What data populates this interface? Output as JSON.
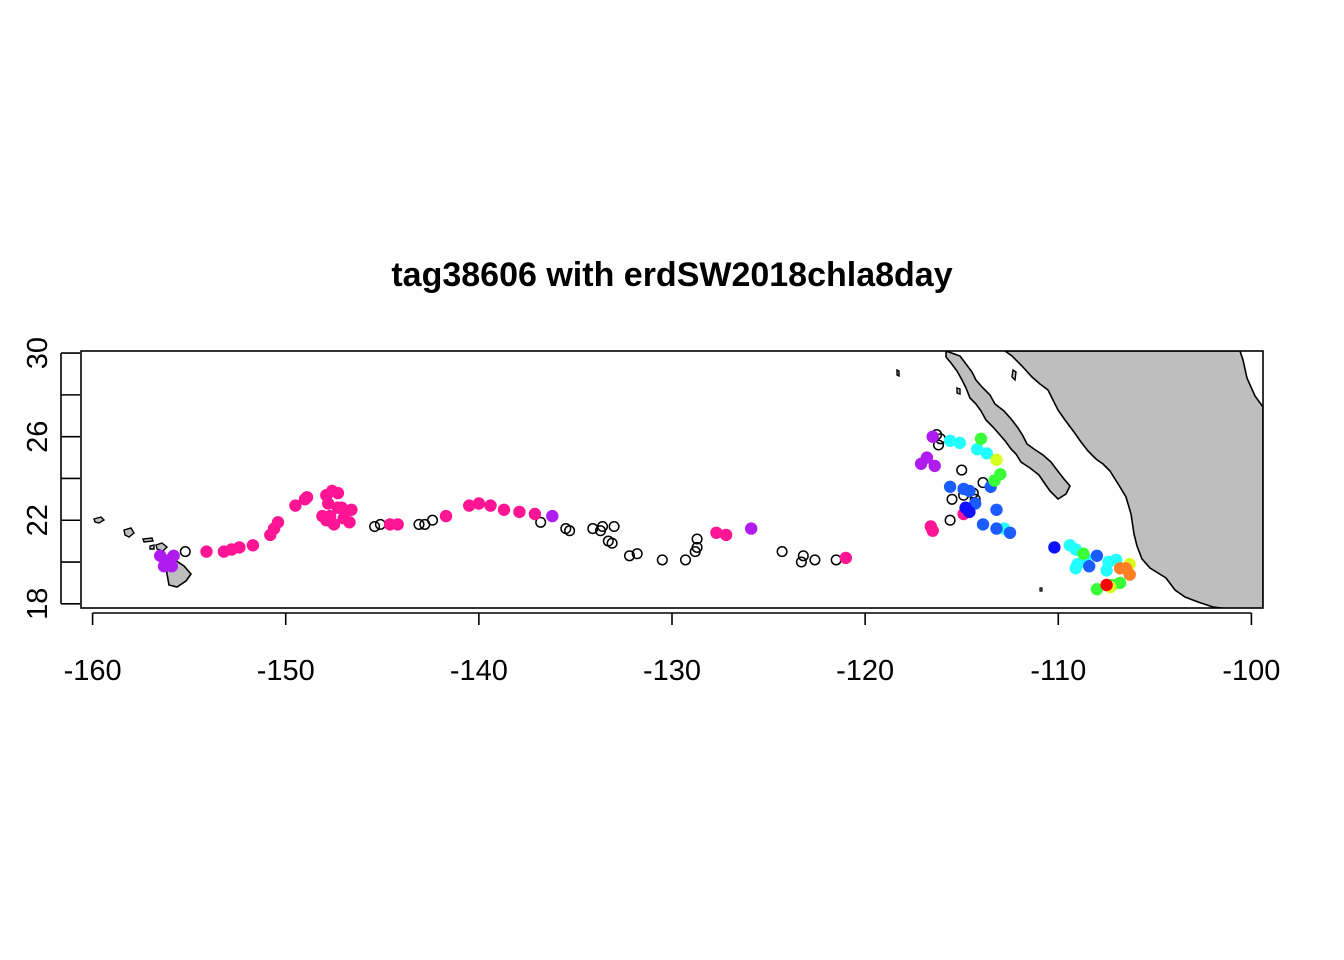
{
  "chart_data": {
    "type": "scatter",
    "title": "tag38606 with erdSW2018chla8day",
    "xlabel": "",
    "ylabel": "",
    "xlim": [
      -160.6,
      -99.4
    ],
    "ylim": [
      17.8,
      30.1
    ],
    "x_ticks": [
      -160,
      -150,
      -140,
      -130,
      -120,
      -110,
      -100
    ],
    "x_tick_labels": [
      "-160",
      "-150",
      "-140",
      "-130",
      "-120",
      "-110",
      "-100"
    ],
    "y_ticks": [
      18,
      20,
      22,
      24,
      26,
      28,
      30
    ],
    "y_labeled_ticks": [
      18,
      22,
      26,
      30
    ],
    "y_tick_labels": [
      "18",
      "22",
      "26",
      "30"
    ],
    "grid": false,
    "land_color": "#bebebe",
    "colors": {
      "magenta": "#ff1493",
      "purple": "#b01cf0",
      "cyan": "#22ffff",
      "blue": "#1a5cff",
      "darkblue": "#1010ff",
      "green": "#38ff38",
      "yellow": "#d8ff20",
      "orange": "#ff7f24",
      "red": "#ff0000"
    },
    "series": [
      {
        "marker": "open-circle",
        "points": [
          [
            -155.2,
            20.5
          ],
          [
            -145.4,
            21.7
          ],
          [
            -145.1,
            21.8
          ],
          [
            -143.1,
            21.8
          ],
          [
            -142.8,
            21.8
          ],
          [
            -142.4,
            22.0
          ],
          [
            -136.8,
            21.9
          ],
          [
            -135.5,
            21.6
          ],
          [
            -135.3,
            21.5
          ],
          [
            -134.1,
            21.6
          ],
          [
            -133.7,
            21.5
          ],
          [
            -133.6,
            21.7
          ],
          [
            -133.0,
            21.7
          ],
          [
            -133.3,
            21.0
          ],
          [
            -133.1,
            20.9
          ],
          [
            -132.2,
            20.3
          ],
          [
            -131.8,
            20.4
          ],
          [
            -130.5,
            20.1
          ],
          [
            -129.3,
            20.1
          ],
          [
            -128.7,
            21.1
          ],
          [
            -128.7,
            20.7
          ],
          [
            -128.8,
            20.5
          ],
          [
            -124.3,
            20.5
          ],
          [
            -123.2,
            20.3
          ],
          [
            -123.3,
            20.0
          ],
          [
            -122.6,
            20.1
          ],
          [
            -121.5,
            20.1
          ],
          [
            -116.3,
            26.1
          ],
          [
            -116.1,
            25.9
          ],
          [
            -116.2,
            25.6
          ],
          [
            -115.0,
            24.4
          ],
          [
            -115.5,
            23.0
          ],
          [
            -114.9,
            23.2
          ],
          [
            -114.4,
            23.3
          ],
          [
            -114.3,
            23.0
          ],
          [
            -115.6,
            22.0
          ],
          [
            -113.9,
            23.8
          ]
        ]
      },
      {
        "marker": "filled-circle",
        "color": "magenta",
        "points": [
          [
            -154.1,
            20.5
          ],
          [
            -153.2,
            20.5
          ],
          [
            -152.8,
            20.6
          ],
          [
            -152.4,
            20.7
          ],
          [
            -151.7,
            20.8
          ],
          [
            -150.8,
            21.3
          ],
          [
            -150.6,
            21.6
          ],
          [
            -150.4,
            21.9
          ],
          [
            -149.5,
            22.7
          ],
          [
            -149.0,
            23.0
          ],
          [
            -148.9,
            23.1
          ],
          [
            -148.1,
            22.2
          ],
          [
            -147.9,
            22.0
          ],
          [
            -147.7,
            22.2
          ],
          [
            -147.5,
            21.8
          ],
          [
            -147.1,
            22.6
          ],
          [
            -147.0,
            22.1
          ],
          [
            -146.7,
            21.9
          ],
          [
            -146.6,
            22.5
          ],
          [
            -147.9,
            23.2
          ],
          [
            -147.6,
            23.4
          ],
          [
            -147.3,
            23.3
          ],
          [
            -147.8,
            22.8
          ],
          [
            -147.3,
            22.6
          ],
          [
            -144.6,
            21.8
          ],
          [
            -144.2,
            21.8
          ],
          [
            -141.7,
            22.2
          ],
          [
            -140.5,
            22.7
          ],
          [
            -140.0,
            22.8
          ],
          [
            -139.4,
            22.7
          ],
          [
            -138.7,
            22.5
          ],
          [
            -137.9,
            22.4
          ],
          [
            -137.1,
            22.3
          ],
          [
            -127.7,
            21.4
          ],
          [
            -127.2,
            21.3
          ],
          [
            -121.0,
            20.2
          ],
          [
            -116.6,
            21.7
          ],
          [
            -116.5,
            21.5
          ],
          [
            -114.9,
            22.3
          ]
        ]
      },
      {
        "marker": "filled-circle",
        "color": "purple",
        "points": [
          [
            -156.5,
            20.3
          ],
          [
            -156.0,
            20.1
          ],
          [
            -155.8,
            20.3
          ],
          [
            -156.3,
            19.8
          ],
          [
            -155.9,
            19.8
          ],
          [
            -136.2,
            22.2
          ],
          [
            -125.9,
            21.6
          ],
          [
            -116.5,
            26.0
          ],
          [
            -117.1,
            24.7
          ],
          [
            -116.8,
            25.0
          ],
          [
            -116.4,
            24.6
          ]
        ]
      },
      {
        "marker": "filled-circle",
        "color": "cyan",
        "points": [
          [
            -115.6,
            25.8
          ],
          [
            -115.1,
            25.7
          ],
          [
            -114.2,
            25.4
          ],
          [
            -113.7,
            25.2
          ],
          [
            -112.8,
            21.6
          ],
          [
            -109.4,
            20.8
          ],
          [
            -109.1,
            20.6
          ],
          [
            -108.6,
            20.2
          ],
          [
            -109.0,
            19.9
          ],
          [
            -109.1,
            19.7
          ],
          [
            -107.5,
            19.6
          ],
          [
            -107.0,
            20.1
          ],
          [
            -107.4,
            20.0
          ]
        ]
      },
      {
        "marker": "filled-circle",
        "color": "blue",
        "points": [
          [
            -115.6,
            23.6
          ],
          [
            -114.9,
            23.5
          ],
          [
            -114.6,
            23.4
          ],
          [
            -113.5,
            23.6
          ],
          [
            -114.3,
            22.8
          ],
          [
            -113.2,
            22.5
          ],
          [
            -113.9,
            21.8
          ],
          [
            -113.2,
            21.6
          ],
          [
            -112.5,
            21.4
          ],
          [
            -108.0,
            20.3
          ],
          [
            -108.4,
            19.8
          ]
        ]
      },
      {
        "marker": "filled-circle",
        "color": "darkblue",
        "points": [
          [
            -114.8,
            22.6
          ],
          [
            -114.6,
            22.4
          ],
          [
            -110.2,
            20.7
          ]
        ]
      },
      {
        "marker": "filled-circle",
        "color": "green",
        "points": [
          [
            -114.0,
            25.9
          ],
          [
            -113.0,
            24.2
          ],
          [
            -113.3,
            23.9
          ],
          [
            -108.7,
            20.4
          ],
          [
            -106.8,
            19.0
          ],
          [
            -107.2,
            18.9
          ],
          [
            -108.0,
            18.7
          ]
        ]
      },
      {
        "marker": "filled-circle",
        "color": "yellow",
        "points": [
          [
            -113.2,
            24.9
          ],
          [
            -106.3,
            19.9
          ],
          [
            -107.3,
            18.8
          ]
        ]
      },
      {
        "marker": "filled-circle",
        "color": "orange",
        "points": [
          [
            -106.8,
            19.7
          ],
          [
            -106.5,
            19.7
          ],
          [
            -106.3,
            19.4
          ]
        ]
      },
      {
        "marker": "filled-circle",
        "color": "red",
        "points": [
          [
            -107.5,
            18.9
          ]
        ]
      }
    ]
  }
}
